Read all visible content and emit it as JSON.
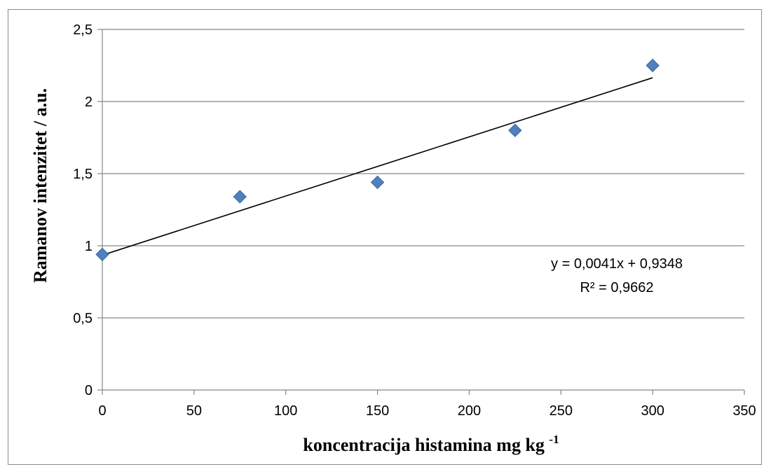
{
  "chart_data": {
    "type": "scatter",
    "xlabel": "koncentracija histamina mg kg",
    "xlabel_superscript": "-1",
    "ylabel": "Ramanov intenzitet / a.u.",
    "xlim": [
      0,
      350
    ],
    "ylim": [
      0,
      2.5
    ],
    "x_ticks": [
      "0",
      "50",
      "100",
      "150",
      "200",
      "250",
      "300",
      "350"
    ],
    "y_ticks": [
      "0",
      "0,5",
      "1",
      "1,5",
      "2",
      "2,5"
    ],
    "grid": "horizontal",
    "marker_color": "#4f81bd",
    "series": [
      {
        "x": [
          0,
          75,
          150,
          225,
          300
        ],
        "y": [
          0.94,
          1.34,
          1.44,
          1.8,
          2.25
        ]
      }
    ],
    "trendline": {
      "type": "linear",
      "slope": 0.0041,
      "intercept": 0.9348,
      "x_range": [
        0,
        300
      ],
      "equation_label": "y = 0,0041x + 0,9348",
      "r2_label": "R² = 0,9662"
    }
  }
}
